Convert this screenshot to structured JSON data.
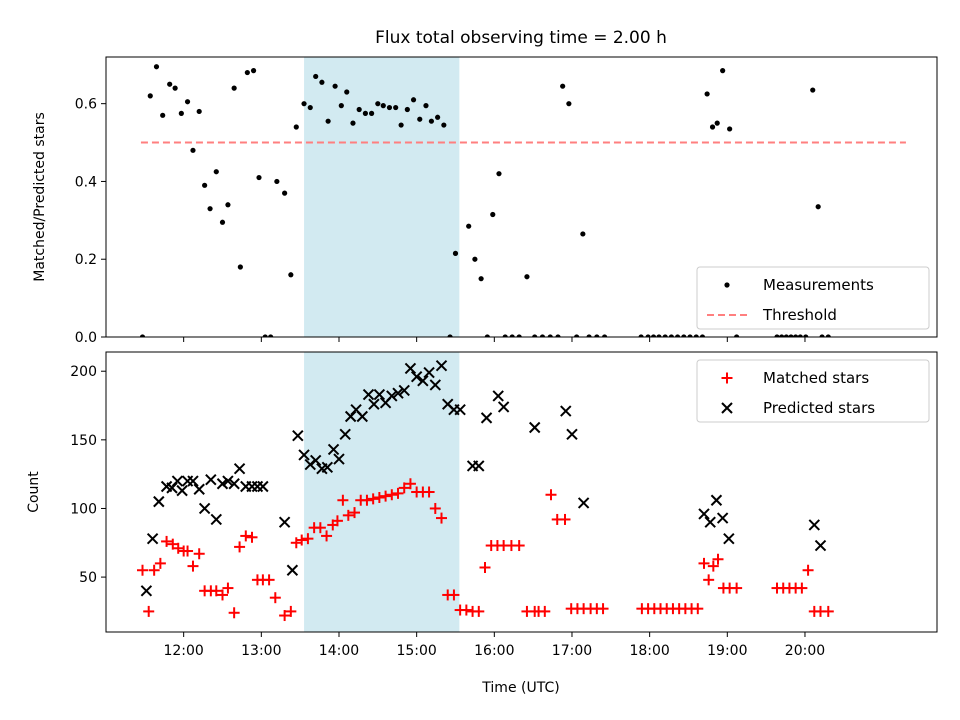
{
  "chart_data": {
    "title": "Flux total observing time = 2.00 h",
    "xlabel": "Time (UTC)",
    "x_ticks": [
      "12:00",
      "13:00",
      "14:00",
      "15:00",
      "16:00",
      "17:00",
      "18:00",
      "19:00",
      "20:00"
    ],
    "x_tick_hours": [
      12,
      13,
      14,
      15,
      16,
      17,
      18,
      19,
      20
    ],
    "xlim_hours": [
      11.0,
      21.7
    ],
    "highlight_band_hours": [
      13.55,
      15.55
    ],
    "highlight_color": "#add8e6",
    "charts": [
      {
        "type": "scatter",
        "ylabel": "Matched/Predicted stars",
        "ylim": [
          0,
          0.72
        ],
        "y_ticks": [
          0.0,
          0.2,
          0.4,
          0.6
        ],
        "y_tick_labels": [
          "0.0",
          "0.2",
          "0.4",
          "0.6"
        ],
        "legend": {
          "placement": "lower-right",
          "entries": [
            "Measurements",
            "Threshold"
          ]
        },
        "threshold": {
          "name": "Threshold",
          "value": 0.5,
          "x_range_hours": [
            11.45,
            21.3
          ],
          "color": "#ff7f7f",
          "style": "dashed"
        },
        "series": [
          {
            "name": "Measurements",
            "marker": "dot",
            "color": "#000000",
            "x_hours": [
              11.47,
              11.57,
              11.65,
              11.73,
              11.82,
              11.89,
              11.97,
              12.05,
              12.12,
              12.2,
              12.27,
              12.34,
              12.42,
              12.5,
              12.57,
              12.65,
              12.73,
              12.82,
              12.9,
              12.97,
              13.05,
              13.12,
              13.2,
              13.3,
              13.38,
              13.45,
              13.55,
              13.63,
              13.7,
              13.78,
              13.86,
              13.95,
              14.03,
              14.1,
              14.18,
              14.26,
              14.34,
              14.42,
              14.5,
              14.57,
              14.65,
              14.73,
              14.8,
              14.88,
              14.96,
              15.04,
              15.12,
              15.19,
              15.27,
              15.35,
              15.43,
              15.5,
              15.67,
              15.75,
              15.83,
              15.91,
              15.98,
              16.06,
              16.14,
              16.23,
              16.32,
              16.42,
              16.52,
              16.62,
              16.72,
              16.82,
              16.88,
              16.96,
              17.06,
              17.14,
              17.22,
              17.32,
              17.42,
              17.89,
              17.98,
              18.05,
              18.12,
              18.2,
              18.28,
              18.36,
              18.44,
              18.52,
              18.6,
              18.68,
              18.74,
              18.81,
              18.87,
              18.94,
              19.03,
              19.12,
              19.64,
              19.7,
              19.76,
              19.82,
              19.88,
              19.94,
              20.01,
              20.1,
              20.17,
              20.22,
              20.3
            ],
            "y": [
              0.0,
              0.62,
              0.695,
              0.57,
              0.65,
              0.64,
              0.575,
              0.605,
              0.48,
              0.58,
              0.39,
              0.33,
              0.425,
              0.295,
              0.34,
              0.64,
              0.18,
              0.68,
              0.685,
              0.41,
              0.0,
              0.0,
              0.4,
              0.37,
              0.16,
              0.54,
              0.6,
              0.59,
              0.67,
              0.655,
              0.555,
              0.645,
              0.595,
              0.63,
              0.55,
              0.585,
              0.575,
              0.575,
              0.6,
              0.595,
              0.59,
              0.59,
              0.545,
              0.585,
              0.61,
              0.56,
              0.595,
              0.555,
              0.565,
              0.545,
              0.0,
              0.215,
              0.285,
              0.2,
              0.15,
              0.0,
              0.315,
              0.42,
              0.0,
              0.0,
              0.0,
              0.155,
              0.0,
              0.0,
              0.0,
              0.0,
              0.645,
              0.6,
              0.0,
              0.265,
              0.0,
              0.0,
              0.0,
              0.0,
              0.0,
              0.0,
              0.0,
              0.0,
              0.0,
              0.0,
              0.0,
              0.0,
              0.0,
              0.0,
              0.625,
              0.54,
              0.55,
              0.685,
              0.535,
              0.0,
              0.0,
              0.0,
              0.0,
              0.0,
              0.0,
              0.0,
              0.0,
              0.635,
              0.335,
              0.0,
              0.0
            ]
          }
        ]
      },
      {
        "type": "scatter",
        "ylabel": "Count",
        "ylim": [
          10,
          214
        ],
        "y_ticks": [
          50,
          100,
          150,
          200
        ],
        "y_tick_labels": [
          "50",
          "100",
          "150",
          "200"
        ],
        "legend": {
          "placement": "top-right",
          "entries": [
            "Matched stars",
            "Predicted stars"
          ]
        },
        "series": [
          {
            "name": "Matched stars",
            "marker": "plus",
            "color": "#ff0000",
            "x_hours": [
              11.47,
              11.55,
              11.62,
              11.7,
              11.78,
              11.86,
              11.93,
              12.0,
              12.05,
              12.12,
              12.2,
              12.27,
              12.35,
              12.42,
              12.5,
              12.57,
              12.65,
              12.72,
              12.8,
              12.88,
              12.95,
              13.02,
              13.1,
              13.18,
              13.3,
              13.38,
              13.45,
              13.52,
              13.6,
              13.68,
              13.76,
              13.84,
              13.92,
              13.98,
              14.05,
              14.12,
              14.2,
              14.28,
              14.36,
              14.44,
              14.52,
              14.6,
              14.68,
              14.76,
              14.84,
              14.92,
              15.0,
              15.08,
              15.16,
              15.24,
              15.32,
              15.4,
              15.48,
              15.56,
              15.64,
              15.72,
              15.8,
              15.88,
              15.96,
              16.04,
              16.12,
              16.22,
              16.32,
              16.42,
              16.52,
              16.57,
              16.65,
              16.73,
              16.81,
              16.91,
              16.99,
              17.07,
              17.15,
              17.24,
              17.32,
              17.4,
              17.9,
              17.98,
              18.06,
              18.14,
              18.22,
              18.3,
              18.38,
              18.46,
              18.54,
              18.62,
              18.7,
              18.76,
              18.82,
              18.88,
              18.95,
              19.03,
              19.12,
              19.64,
              19.72,
              19.8,
              19.88,
              19.96,
              20.04,
              20.12,
              20.2,
              20.3
            ],
            "y": [
              55,
              25,
              55,
              60,
              76,
              74,
              71,
              69,
              69,
              58,
              67,
              40,
              40,
              40,
              37,
              42,
              24,
              72,
              80,
              79,
              48,
              48,
              48,
              35,
              22,
              25,
              75,
              77,
              78,
              86,
              86,
              80,
              88,
              91,
              106,
              95,
              97,
              106,
              106,
              107,
              108,
              109,
              110,
              111,
              115,
              118,
              112,
              112,
              112,
              100,
              93,
              37,
              37,
              26,
              26,
              25,
              25,
              57,
              73,
              73,
              73,
              73,
              73,
              25,
              25,
              25,
              25,
              110,
              92,
              92,
              27,
              27,
              27,
              27,
              27,
              27,
              27,
              27,
              27,
              27,
              27,
              27,
              27,
              27,
              27,
              27,
              60,
              48,
              58,
              63,
              42,
              42,
              42,
              42,
              42,
              42,
              42,
              42,
              55,
              25,
              25,
              25
            ],
            "y_note": ""
          },
          {
            "name": "Predicted stars",
            "marker": "cross",
            "color": "#000000",
            "x_hours": [
              11.52,
              11.6,
              11.68,
              11.78,
              11.85,
              11.92,
              11.98,
              12.05,
              12.12,
              12.2,
              12.27,
              12.35,
              12.42,
              12.5,
              12.57,
              12.65,
              12.72,
              12.8,
              12.88,
              12.95,
              13.02,
              13.3,
              13.4,
              13.47,
              13.55,
              13.63,
              13.7,
              13.78,
              13.85,
              13.93,
              14.0,
              14.08,
              14.15,
              14.22,
              14.3,
              14.38,
              14.45,
              14.52,
              14.6,
              14.68,
              14.76,
              14.84,
              14.92,
              15.0,
              15.08,
              15.16,
              15.24,
              15.32,
              15.4,
              15.48,
              15.56,
              15.72,
              15.8,
              15.9,
              16.05,
              16.12,
              16.52,
              16.92,
              17.0,
              17.15,
              18.7,
              18.78,
              18.86,
              18.94,
              19.02,
              20.12,
              20.2
            ],
            "y": [
              40,
              78,
              105,
              116,
              115,
              120,
              113,
              120,
              120,
              114,
              100,
              121,
              92,
              118,
              120,
              118,
              129,
              116,
              116,
              116,
              116,
              90,
              55,
              153,
              139,
              132,
              135,
              129,
              130,
              143,
              136,
              154,
              167,
              172,
              167,
              183,
              176,
              183,
              177,
              182,
              184,
              186,
              202,
              196,
              193,
              199,
              190,
              204,
              176,
              172,
              172,
              131,
              131,
              166,
              182,
              174,
              159,
              171,
              154,
              104,
              96,
              90,
              106,
              93,
              78,
              88,
              73
            ]
          }
        ]
      }
    ]
  }
}
